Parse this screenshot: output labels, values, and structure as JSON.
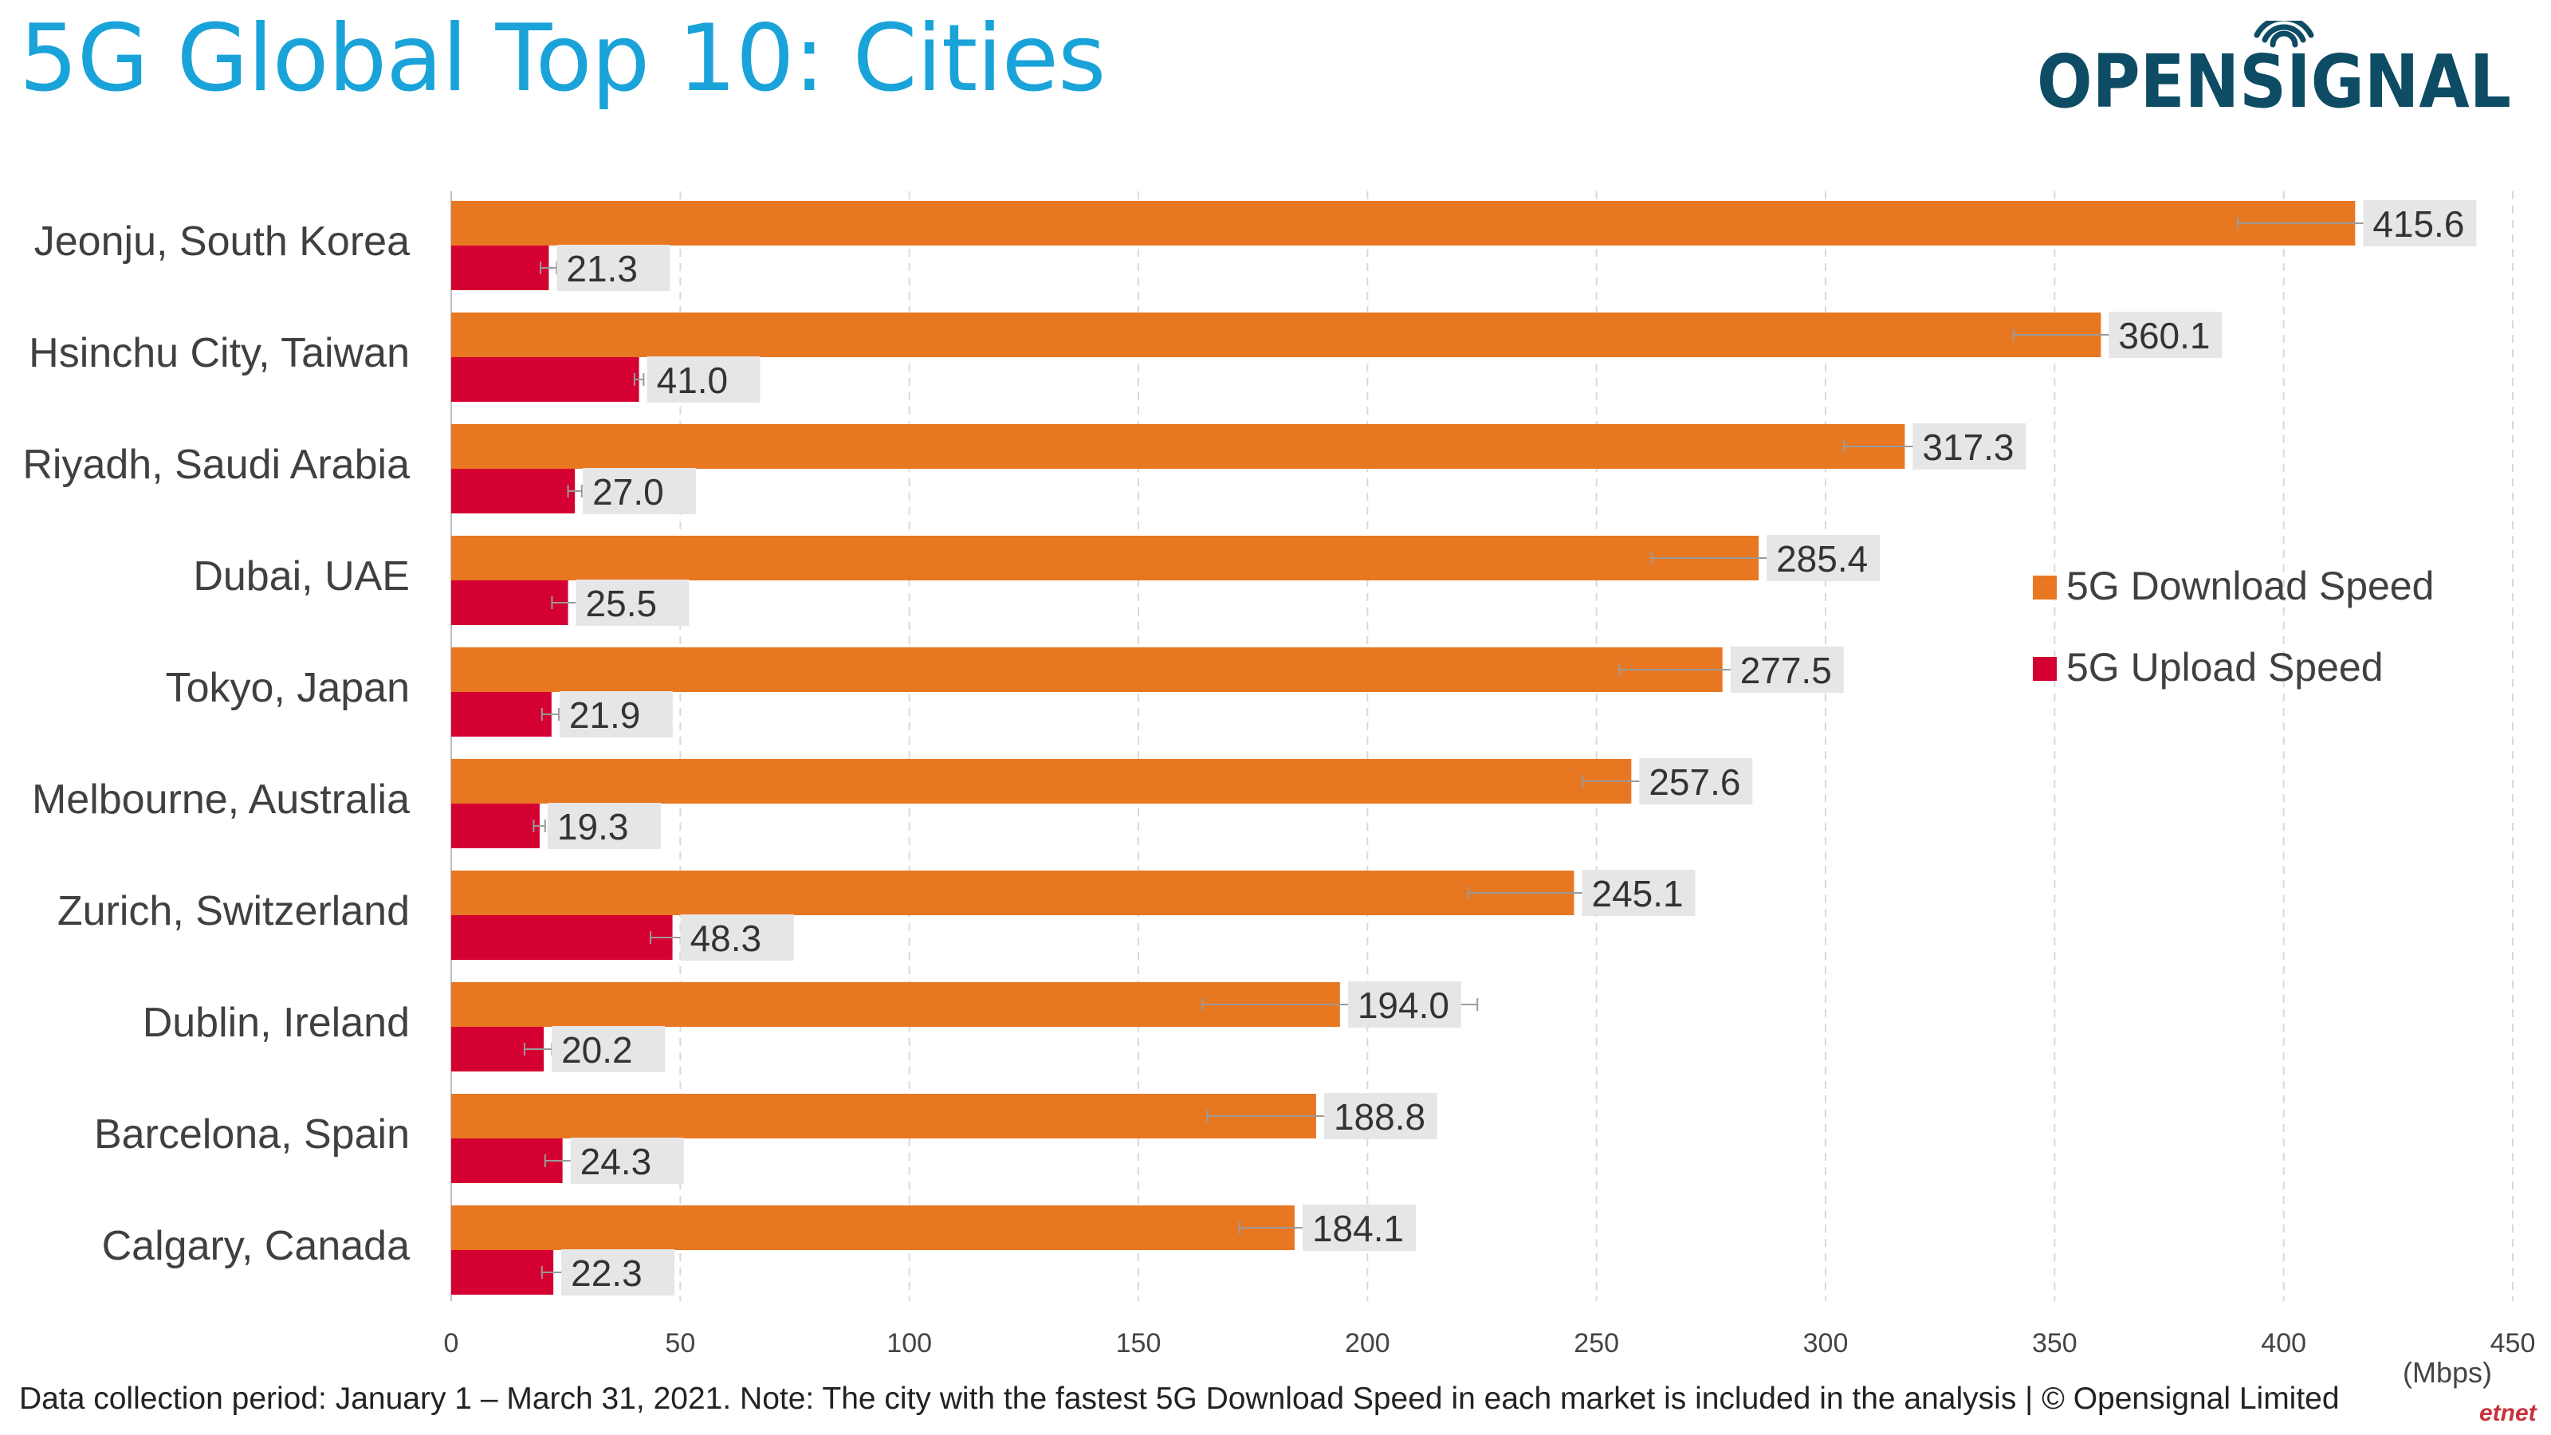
{
  "header": {
    "title": "5G Global Top 10: Cities",
    "logo_text": "OPENSIGNAL"
  },
  "footnote": "Data collection period: January 1 – March 31, 2021. Note: The city with the fastest 5G Download Speed in each market is included in the analysis | © Opensignal Limited",
  "corner_mark": "etnet",
  "colors": {
    "title": "#1aa3d9",
    "logo": "#0d4c64",
    "download": "#e87722",
    "upload": "#d50032",
    "label_bg": "#e6e6e6",
    "grid": "#d9d9d9"
  },
  "chart_data": {
    "type": "bar",
    "orientation": "horizontal",
    "title": "5G Global Top 10: Cities",
    "categories": [
      "Jeonju, South Korea",
      "Hsinchu City, Taiwan",
      "Riyadh, Saudi Arabia",
      "Dubai, UAE",
      "Tokyo, Japan",
      "Melbourne, Australia",
      "Zurich, Switzerland",
      "Dublin, Ireland",
      "Barcelona, Spain",
      "Calgary, Canada"
    ],
    "series": [
      {
        "name": "5G Download Speed",
        "color": "#e87722",
        "values": [
          415.6,
          360.1,
          317.3,
          285.4,
          277.5,
          257.6,
          245.1,
          194.0,
          188.8,
          184.1
        ],
        "labels": [
          "415.6",
          "360.1",
          "317.3",
          "285.4",
          "277.5",
          "257.6",
          "245.1",
          "194.0",
          "188.8",
          "184.1"
        ],
        "ci_low": [
          390,
          341,
          304,
          262,
          255,
          247,
          222,
          164,
          165,
          172
        ],
        "ci_high": [
          427,
          367,
          328,
          300,
          290,
          265,
          270,
          224,
          200,
          190
        ]
      },
      {
        "name": "5G Upload Speed",
        "color": "#d50032",
        "values": [
          21.3,
          41.0,
          27.0,
          25.5,
          21.9,
          19.3,
          48.3,
          20.2,
          24.3,
          22.3
        ],
        "labels": [
          "21.3",
          "41.0",
          "27.0",
          "25.5",
          "21.9",
          "19.3",
          "48.3",
          "20.2",
          "24.3",
          "22.3"
        ],
        "ci_low": [
          19.5,
          40.0,
          25.5,
          22.0,
          19.8,
          18.0,
          43.5,
          16.0,
          20.5,
          19.8
        ],
        "ci_high": [
          23.0,
          42.0,
          28.5,
          28.0,
          23.5,
          20.5,
          52.0,
          22.0,
          27.0,
          24.3
        ]
      }
    ],
    "xlim": [
      0,
      450
    ],
    "x_ticks": [
      "0",
      "50",
      "100",
      "150",
      "200",
      "250",
      "300",
      "350",
      "400",
      "450"
    ],
    "xunit": "(Mbps)",
    "grid": "vertical dashed",
    "legend_position": "right"
  }
}
